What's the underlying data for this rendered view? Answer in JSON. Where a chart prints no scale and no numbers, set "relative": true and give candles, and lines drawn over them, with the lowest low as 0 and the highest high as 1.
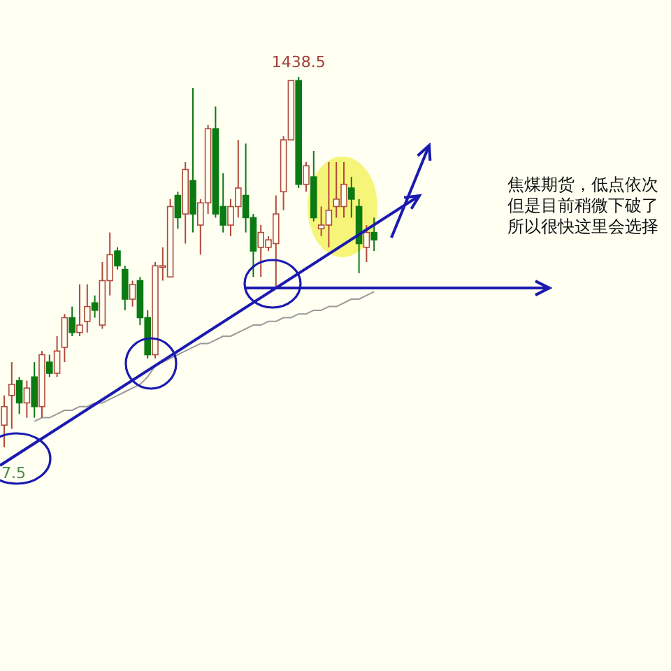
{
  "chart_data": {
    "type": "candlestick",
    "relative": true,
    "categories": [
      null,
      null,
      null,
      null,
      null,
      null,
      null,
      null,
      null,
      null,
      null,
      null,
      null,
      null,
      null,
      null,
      null,
      null,
      null,
      null,
      null,
      null,
      null,
      null,
      null,
      null,
      null,
      null,
      null,
      null,
      null,
      null,
      null,
      null,
      null,
      null,
      null,
      null,
      null,
      null,
      null,
      null,
      null,
      null,
      null,
      null,
      null,
      null,
      null,
      null
    ],
    "ohlc": [
      [
        0.06,
        0.14,
        0,
        0.11
      ],
      [
        0.14,
        0.23,
        0.05,
        0.17
      ],
      [
        0.18,
        0.19,
        0.09,
        0.12
      ],
      [
        0.12,
        0.18,
        0.08,
        0.16
      ],
      [
        0.19,
        0.23,
        0.08,
        0.11
      ],
      [
        0.11,
        0.26,
        0.08,
        0.25
      ],
      [
        0.23,
        0.25,
        0.19,
        0.2
      ],
      [
        0.2,
        0.3,
        0.19,
        0.26
      ],
      [
        0.27,
        0.36,
        0.23,
        0.35
      ],
      [
        0.35,
        0.38,
        0.3,
        0.31
      ],
      [
        0.31,
        0.44,
        0.3,
        0.33
      ],
      [
        0.34,
        0.44,
        0.31,
        0.38
      ],
      [
        0.39,
        0.41,
        0.35,
        0.37
      ],
      [
        0.33,
        0.5,
        0.32,
        0.45
      ],
      [
        0.45,
        0.58,
        0.41,
        0.52
      ],
      [
        0.53,
        0.54,
        0.48,
        0.49
      ],
      [
        0.48,
        0.49,
        0.37,
        0.4
      ],
      [
        0.4,
        0.45,
        0.38,
        0.44
      ],
      [
        0.45,
        0.46,
        0.33,
        0.35
      ],
      [
        0.35,
        0.37,
        0.24,
        0.25
      ],
      [
        0.25,
        0.5,
        0.24,
        0.49
      ],
      [
        0.49,
        0.54,
        0.45,
        0.49
      ],
      [
        0.46,
        0.67,
        0.46,
        0.65
      ],
      [
        0.68,
        0.69,
        0.59,
        0.62
      ],
      [
        0.63,
        0.77,
        0.55,
        0.75
      ],
      [
        0.72,
        0.97,
        0.58,
        0.63
      ],
      [
        0.6,
        0.67,
        0.52,
        0.66
      ],
      [
        0.66,
        0.87,
        0.63,
        0.86
      ],
      [
        0.86,
        0.92,
        0.62,
        0.63
      ],
      [
        0.65,
        0.74,
        0.58,
        0.6
      ],
      [
        0.6,
        0.67,
        0.57,
        0.65
      ],
      [
        0.65,
        0.83,
        0.62,
        0.7
      ],
      [
        0.68,
        0.82,
        0.58,
        0.62
      ],
      [
        0.62,
        0.63,
        0.46,
        0.53
      ],
      [
        0.54,
        0.6,
        0.46,
        0.58
      ],
      [
        0.54,
        0.57,
        0.53,
        0.56
      ],
      [
        0.55,
        0.68,
        0.43,
        0.63
      ],
      [
        0.69,
        0.84,
        0.64,
        0.83
      ],
      [
        0.83,
        0.99,
        0.83,
        0.99
      ],
      [
        0.99,
        1,
        0.7,
        0.71
      ],
      [
        0.71,
        0.77,
        0.69,
        0.76
      ],
      [
        0.73,
        0.8,
        0.61,
        0.62
      ],
      [
        0.59,
        0.65,
        0.57,
        0.6
      ],
      [
        0.6,
        0.77,
        0.54,
        0.64
      ],
      [
        0.65,
        0.77,
        0.62,
        0.67
      ],
      [
        0.65,
        0.77,
        0.62,
        0.71
      ],
      [
        0.7,
        0.73,
        0.62,
        0.67
      ],
      [
        0.65,
        0.67,
        0.47,
        0.55
      ],
      [
        0.54,
        0.6,
        0.5,
        0.58
      ],
      [
        0.58,
        0.62,
        0.53,
        0.56
      ]
    ],
    "series": [
      {
        "type": "line",
        "color": "#9a9a9a",
        "values": [
          null,
          null,
          null,
          null,
          0.07,
          0.08,
          0.08,
          0.09,
          0.1,
          0.1,
          0.11,
          0.11,
          0.12,
          0.12,
          0.13,
          0.14,
          0.15,
          0.16,
          0.17,
          0.19,
          0.22,
          0.23,
          0.24,
          0.25,
          0.26,
          0.27,
          0.28,
          0.28,
          0.29,
          0.3,
          0.3,
          0.31,
          0.32,
          0.33,
          0.33,
          0.34,
          0.34,
          0.35,
          0.35,
          0.36,
          0.36,
          0.37,
          0.37,
          0.38,
          0.38,
          0.39,
          0.4,
          0.4,
          0.41,
          0.42
        ]
      }
    ],
    "ref_lines": [
      {
        "axis": "y",
        "value": 0.43,
        "color": "#1a1ab0"
      }
    ],
    "annotations": [
      {
        "text": "1438.5",
        "y": 1
      },
      "7.5",
      "焦煤期货，低点依次",
      "但是目前稍微下破了",
      "所以很快这里会选择"
    ]
  }
}
